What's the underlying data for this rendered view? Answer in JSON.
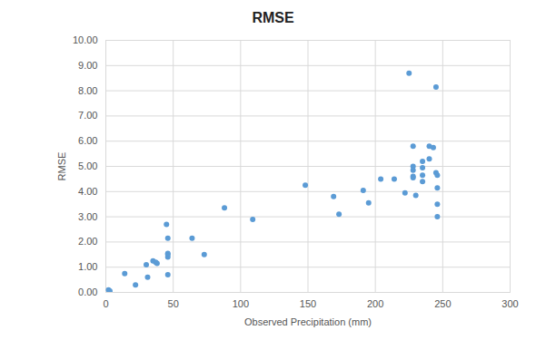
{
  "chart_data": {
    "type": "scatter",
    "title": "RMSE",
    "x_label": "Observed Precipitation (mm)",
    "y_label": "RMSE",
    "color": "#5b9bd5",
    "marker": "circle",
    "grid": true,
    "x": [
      2,
      3,
      14,
      22,
      30,
      31,
      35,
      37,
      38,
      45,
      46,
      46,
      46,
      46,
      46,
      64,
      73,
      88,
      109,
      148,
      169,
      173,
      191,
      195,
      204,
      214,
      222,
      225,
      228,
      228,
      228,
      228,
      228,
      230,
      235,
      235,
      235,
      235,
      240,
      240,
      243,
      245,
      245,
      246,
      246,
      246,
      246
    ],
    "values": [
      0.1,
      0.05,
      0.75,
      0.3,
      1.1,
      0.6,
      1.25,
      1.2,
      1.15,
      2.7,
      2.15,
      1.5,
      1.4,
      1.55,
      0.7,
      2.15,
      1.5,
      3.35,
      2.9,
      4.25,
      3.8,
      3.1,
      4.05,
      3.55,
      4.5,
      4.5,
      3.95,
      8.7,
      5.8,
      5.0,
      4.85,
      4.6,
      4.55,
      3.85,
      5.2,
      4.95,
      4.65,
      4.4,
      5.8,
      5.3,
      5.75,
      8.15,
      4.75,
      4.65,
      3.5,
      4.15,
      3.0
    ],
    "xlim": [
      0,
      300
    ],
    "xticks": [
      0,
      50,
      100,
      150,
      200,
      250,
      300
    ],
    "ylim": [
      0,
      10
    ],
    "yticks": [
      {
        "value": 0,
        "label": "0.00"
      },
      {
        "value": 1,
        "label": "1.00"
      },
      {
        "value": 2,
        "label": "2.00"
      },
      {
        "value": 3,
        "label": "3.00"
      },
      {
        "value": 4,
        "label": "4.00"
      },
      {
        "value": 5,
        "label": "5.00"
      },
      {
        "value": 6,
        "label": "6.00"
      },
      {
        "value": 7,
        "label": "7.00"
      },
      {
        "value": 8,
        "label": "8.00"
      },
      {
        "value": 9,
        "label": "9.00"
      },
      {
        "value": 10,
        "label": "10.00"
      }
    ]
  }
}
